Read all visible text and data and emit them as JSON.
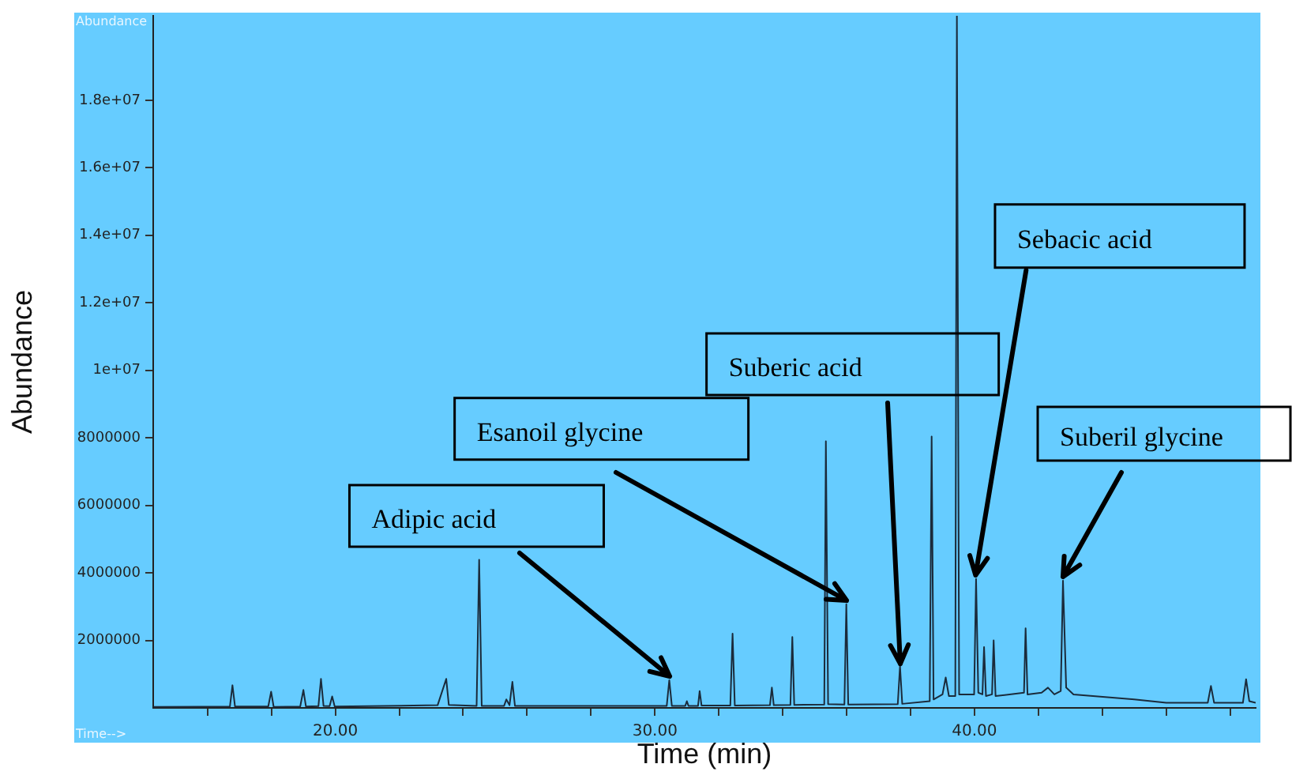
{
  "chart_data": {
    "type": "line",
    "xlabel": "Time (min)",
    "ylabel": "Abundance",
    "x": [
      14.3,
      16.7,
      16.78,
      16.86,
      17.9,
      17.99,
      18.07,
      18.9,
      19.0,
      19.08,
      19.47,
      19.55,
      19.63,
      19.82,
      19.9,
      19.98,
      23.2,
      23.47,
      23.55,
      24.42,
      24.5,
      24.58,
      25.28,
      25.35,
      25.45,
      25.54,
      25.62,
      30.37,
      30.45,
      30.53,
      30.95,
      31.0,
      31.05,
      31.35,
      31.4,
      31.46,
      32.36,
      32.43,
      32.5,
      33.6,
      33.66,
      33.72,
      34.24,
      34.3,
      34.36,
      35.3,
      35.35,
      35.42,
      35.93,
      35.99,
      36.05,
      37.6,
      37.67,
      37.74,
      38.6,
      38.66,
      38.72,
      39.0,
      39.1,
      39.2,
      39.4,
      39.45,
      39.52,
      39.99,
      40.05,
      40.12,
      40.25,
      40.3,
      40.36,
      40.55,
      40.6,
      40.66,
      41.55,
      41.6,
      41.66,
      42.1,
      42.3,
      42.5,
      42.7,
      42.77,
      42.87,
      43.1,
      45.0,
      46.0,
      47.3,
      47.4,
      47.5,
      48.4,
      48.5,
      48.6,
      48.8
    ],
    "series": [
      {
        "color": "#1b2b3b",
        "values": [
          30000,
          40000,
          670000,
          40000,
          40000,
          480000,
          30000,
          40000,
          530000,
          40000,
          50000,
          860000,
          60000,
          50000,
          340000,
          40000,
          80000,
          860000,
          90000,
          60000,
          4390000,
          60000,
          60000,
          250000,
          80000,
          770000,
          60000,
          60000,
          820000,
          60000,
          60000,
          200000,
          60000,
          60000,
          500000,
          70000,
          70000,
          2200000,
          70000,
          80000,
          600000,
          80000,
          90000,
          2100000,
          90000,
          100000,
          7900000,
          110000,
          100000,
          3070000,
          100000,
          110000,
          1240000,
          120000,
          200000,
          8040000,
          250000,
          400000,
          900000,
          350000,
          350000,
          20500000,
          400000,
          400000,
          3820000,
          450000,
          400000,
          1800000,
          350000,
          400000,
          2000000,
          350000,
          450000,
          2360000,
          400000,
          450000,
          600000,
          400000,
          500000,
          3770000,
          600000,
          400000,
          250000,
          150000,
          150000,
          650000,
          150000,
          150000,
          850000,
          200000,
          150000
        ]
      }
    ],
    "xlim": [
      14.3,
      48.8
    ],
    "xticks": [
      {
        "value": 16,
        "label": null
      },
      {
        "value": 18,
        "label": null
      },
      {
        "value": 20,
        "label": "20.00"
      },
      {
        "value": 22,
        "label": null
      },
      {
        "value": 24,
        "label": null
      },
      {
        "value": 26,
        "label": null
      },
      {
        "value": 28,
        "label": null
      },
      {
        "value": 30,
        "label": "30.00"
      },
      {
        "value": 32,
        "label": null
      },
      {
        "value": 34,
        "label": null
      },
      {
        "value": 36,
        "label": null
      },
      {
        "value": 38,
        "label": null
      },
      {
        "value": 40,
        "label": "40.00"
      },
      {
        "value": 42,
        "label": null
      },
      {
        "value": 44,
        "label": null
      },
      {
        "value": 46,
        "label": null
      },
      {
        "value": 48,
        "label": null
      }
    ],
    "ylim": [
      0,
      20500000
    ],
    "yticks": [
      2000000,
      4000000,
      6000000,
      8000000,
      {
        "value": 10000000,
        "label": "1e+07"
      },
      {
        "value": 12000000,
        "label": "1.2e+07"
      },
      {
        "value": 14000000,
        "label": "1.4e+07"
      },
      {
        "value": 16000000,
        "label": "1.6e+07"
      },
      {
        "value": 18000000,
        "label": "1.8e+07"
      }
    ],
    "grid": false,
    "legend": false,
    "marker": "none",
    "line_style": "solid",
    "annotations": [
      "Abundance",
      "Time-->",
      {
        "text": "Adipic acid",
        "x": 30.45,
        "y": 820000
      },
      {
        "text": "Esanoil glycine",
        "x": 35.99,
        "y": 3070000
      },
      {
        "text": "Suberic acid",
        "x": 37.67,
        "y": 1240000
      },
      {
        "text": "Sebacic acid",
        "x": 40.05,
        "y": 3820000
      },
      {
        "text": "Suberil glycine",
        "x": 42.77,
        "y": 3770000
      }
    ]
  }
}
